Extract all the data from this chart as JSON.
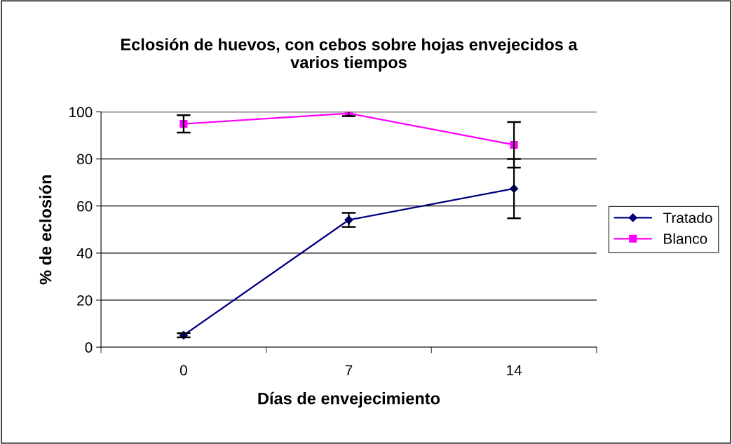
{
  "chart_data": {
    "type": "line",
    "title": "Eclosión de huevos, con cebos sobre hojas envejecidos a\nvarios tiempos",
    "xlabel": "Días de envejecimiento",
    "ylabel": "% de eclosión",
    "categories": [
      "0",
      "7",
      "14"
    ],
    "series": [
      {
        "name": "Tratado",
        "color": "#000080",
        "marker": "diamond",
        "values": [
          5.1,
          54.1,
          67.4
        ],
        "errors": [
          0.9,
          3.0,
          12.6
        ]
      },
      {
        "name": "Blanco",
        "color": "#ff00ff",
        "marker": "square",
        "values": [
          94.9,
          99.4,
          86.0
        ],
        "errors": [
          3.7,
          1.2,
          9.7
        ]
      }
    ],
    "ylim": [
      0,
      100
    ],
    "yticks": [
      0,
      20,
      40,
      60,
      80,
      100
    ],
    "grid": "y",
    "legend": "right"
  }
}
